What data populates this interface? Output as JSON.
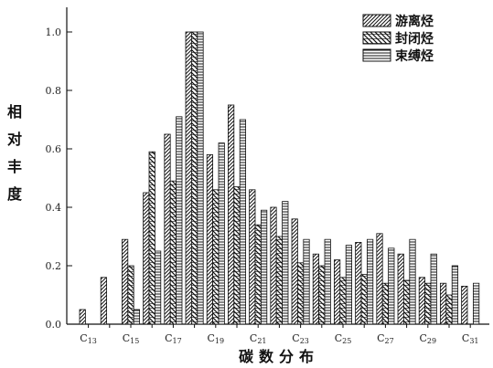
{
  "chart_data": {
    "type": "bar",
    "ylabel": "相对丰度",
    "xlabel": "碳数分布",
    "ylim": [
      0,
      1.1
    ],
    "y_ticks": [
      "0.0",
      "0.2",
      "0.4",
      "0.6",
      "0.8",
      "1.0"
    ],
    "y_tick_values": [
      0,
      0.2,
      0.4,
      0.6,
      0.8,
      1.0
    ],
    "x_ticks": [
      "C13",
      "C15",
      "C17",
      "C19",
      "C21",
      "C23",
      "C25",
      "C27",
      "C29",
      "C31"
    ],
    "categories": [
      "C13",
      "C14",
      "C15",
      "C16",
      "C17",
      "C18",
      "C19",
      "C20",
      "C21",
      "C22",
      "C23",
      "C24",
      "C25",
      "C26",
      "C27",
      "C28",
      "C29",
      "C30",
      "C31"
    ],
    "series": [
      {
        "name": "游离烃",
        "pattern": "diag",
        "values": [
          0.05,
          0.16,
          0.29,
          0.45,
          0.65,
          1.0,
          0.58,
          0.75,
          0.46,
          0.4,
          0.36,
          0.24,
          0.22,
          0.28,
          0.31,
          0.24,
          0.16,
          0.14,
          0.13
        ]
      },
      {
        "name": "封闭烃",
        "pattern": "cross",
        "values": [
          0.0,
          0.0,
          0.2,
          0.59,
          0.49,
          1.0,
          0.46,
          0.47,
          0.34,
          0.3,
          0.21,
          0.2,
          0.16,
          0.17,
          0.14,
          0.15,
          0.14,
          0.1,
          0.0
        ]
      },
      {
        "name": "束缚烃",
        "pattern": "hlines",
        "values": [
          0.0,
          0.0,
          0.05,
          0.25,
          0.71,
          1.0,
          0.62,
          0.7,
          0.39,
          0.42,
          0.29,
          0.29,
          0.27,
          0.29,
          0.26,
          0.29,
          0.24,
          0.2,
          0.14
        ]
      }
    ],
    "legend_position": "top-right"
  }
}
